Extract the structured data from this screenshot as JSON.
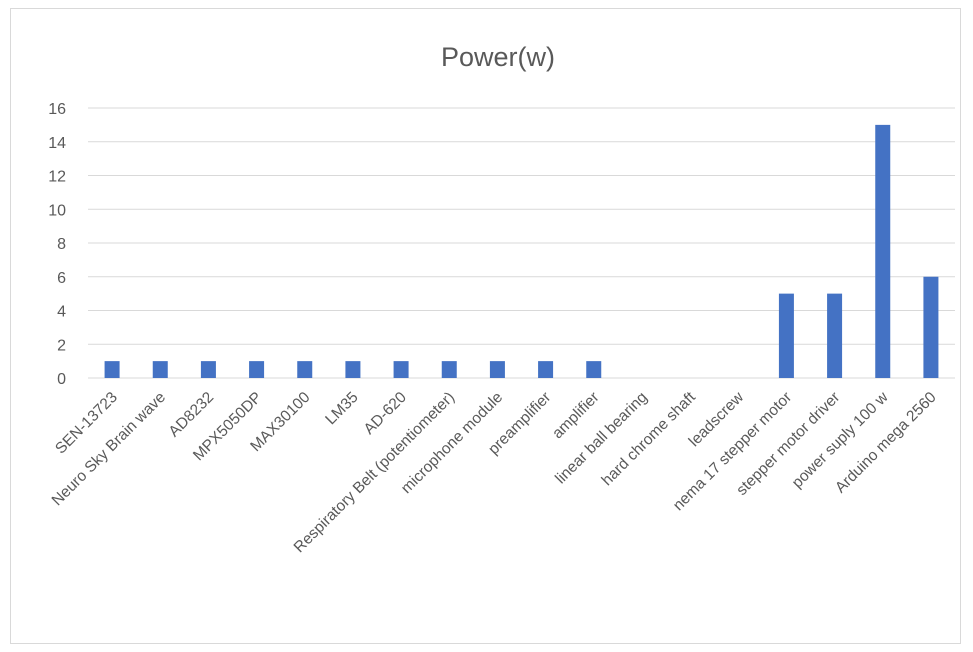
{
  "chart_data": {
    "type": "bar",
    "title": "Power(w)",
    "categories": [
      "SEN-13723",
      "Neuro Sky  Brain wave",
      "AD8232",
      "MPX5050DP",
      "MAX30100",
      "LM35",
      "AD-620",
      "Respiratory Belt (potentiometer)",
      "microphone module",
      "preamplifier",
      "amplifier",
      "linear ball bearing",
      "hard chrome shaft",
      "leadscrew",
      "nema 17 stepper motor",
      "stepper motor driver",
      "power suply 100 w",
      "Arduino mega 2560"
    ],
    "values": [
      1,
      1,
      1,
      1,
      1,
      1,
      1,
      1,
      1,
      1,
      1,
      0,
      0,
      0,
      5,
      5,
      15,
      6
    ],
    "ylim": [
      0,
      16
    ],
    "yticks": [
      0,
      2,
      4,
      6,
      8,
      10,
      12,
      14,
      16
    ],
    "grid": true,
    "bar_color": "#4472c4",
    "grid_color": "#d9d9d9"
  }
}
